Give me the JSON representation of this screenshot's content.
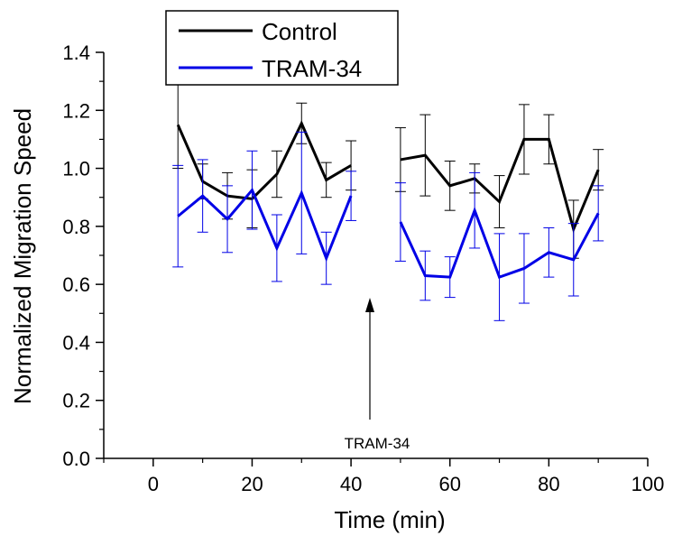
{
  "chart_data": {
    "type": "line",
    "xlabel": "Time (min)",
    "ylabel": "Normalized Migration Speed",
    "xlim": [
      -10,
      100
    ],
    "ylim": [
      0.0,
      1.4
    ],
    "x_ticks": [
      0,
      20,
      40,
      60,
      80,
      100
    ],
    "y_ticks": [
      0.0,
      0.2,
      0.4,
      0.6,
      0.8,
      1.0,
      1.2,
      1.4
    ],
    "x_tick_labels": [
      "0",
      "20",
      "40",
      "60",
      "80",
      "100"
    ],
    "y_tick_labels": [
      "0.0",
      "0.2",
      "0.4",
      "0.6",
      "0.8",
      "1.0",
      "1.2",
      "1.4"
    ],
    "grid": false,
    "legend_position": "top-left",
    "annotation": {
      "text": "TRAM-34",
      "x": 44
    },
    "series": [
      {
        "name": "Control",
        "color": "#000000",
        "segments": [
          {
            "x": [
              5,
              10,
              15,
              20,
              25,
              30,
              35,
              40
            ],
            "y": [
              1.15,
              0.955,
              0.905,
              0.895,
              0.98,
              1.155,
              0.96,
              1.01
            ],
            "err": [
              0.15,
              0.06,
              0.08,
              0.1,
              0.08,
              0.07,
              0.06,
              0.085
            ]
          },
          {
            "x": [
              50,
              55,
              60,
              65,
              70,
              75,
              80,
              85,
              90
            ],
            "y": [
              1.03,
              1.045,
              0.94,
              0.965,
              0.885,
              1.1,
              1.1,
              0.79,
              0.995
            ],
            "err": [
              0.11,
              0.14,
              0.085,
              0.05,
              0.09,
              0.12,
              0.085,
              0.1,
              0.07
            ]
          }
        ]
      },
      {
        "name": "TRAM-34",
        "color": "#0000e6",
        "segments": [
          {
            "x": [
              5,
              10,
              15,
              20,
              25,
              30,
              35,
              40
            ],
            "y": [
              0.835,
              0.905,
              0.825,
              0.925,
              0.725,
              0.915,
              0.69,
              0.905
            ],
            "err": [
              0.175,
              0.125,
              0.115,
              0.135,
              0.115,
              0.21,
              0.09,
              0.085
            ]
          },
          {
            "x": [
              50,
              55,
              60,
              65,
              70,
              75,
              80,
              85,
              90
            ],
            "y": [
              0.815,
              0.63,
              0.625,
              0.855,
              0.625,
              0.655,
              0.71,
              0.685,
              0.845
            ],
            "err": [
              0.135,
              0.085,
              0.07,
              0.13,
              0.15,
              0.12,
              0.085,
              0.125,
              0.095
            ]
          }
        ]
      }
    ]
  }
}
